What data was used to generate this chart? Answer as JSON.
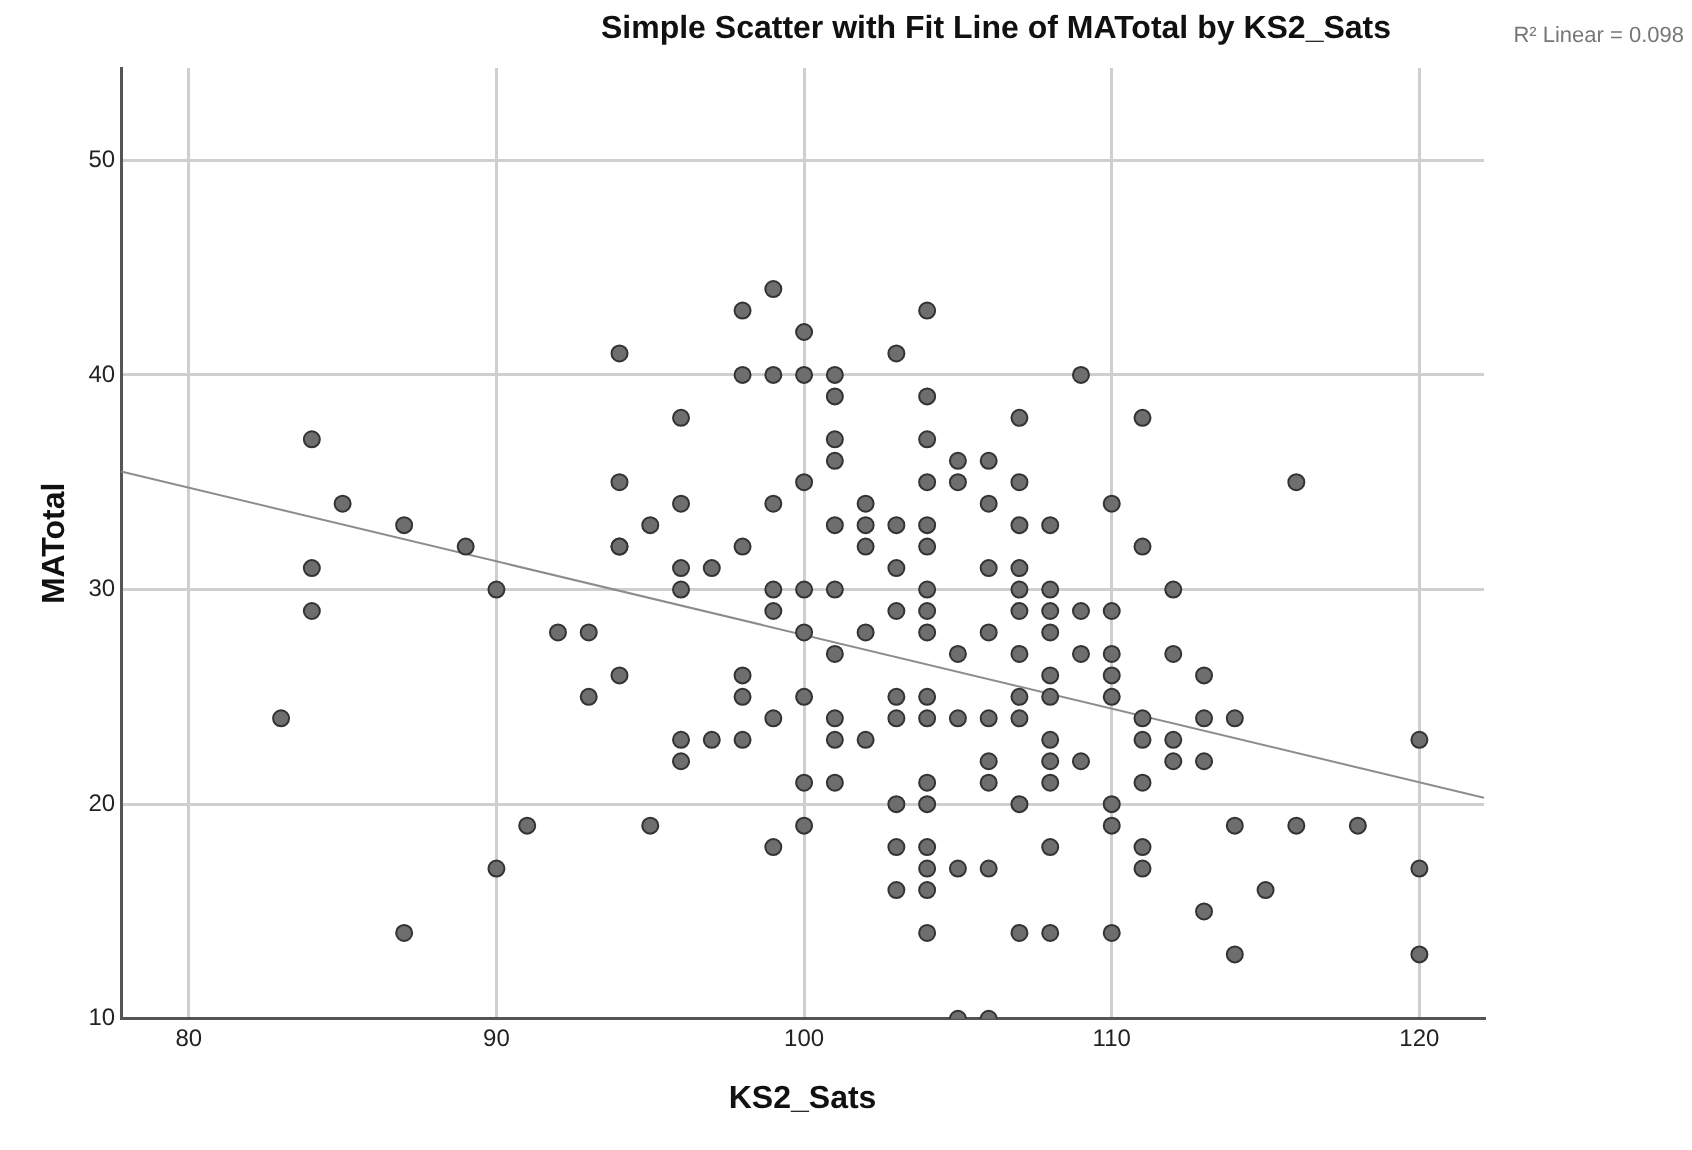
{
  "chart_data": {
    "type": "scatter",
    "title": "Simple Scatter with Fit Line of MATotal by KS2_Sats",
    "xlabel": "KS2_Sats",
    "ylabel": "MATotal",
    "annotations": [
      "R² Linear = 0.098"
    ],
    "xlim": [
      77.8,
      122.1
    ],
    "ylim": [
      10,
      54.3
    ],
    "xticks": [
      80,
      90,
      100,
      110,
      120
    ],
    "yticks": [
      10,
      20,
      30,
      40,
      50
    ],
    "grid": true,
    "legend": false,
    "marker": "circle",
    "series": [
      {
        "type": "scatter",
        "color": "#6e6e6e",
        "x": [
          83,
          84,
          84,
          84,
          85,
          87,
          87,
          89,
          90,
          90,
          91,
          92,
          93,
          93,
          94,
          94,
          94,
          94,
          94,
          95,
          95,
          96,
          96,
          96,
          96,
          96,
          96,
          97,
          97,
          98,
          98,
          98,
          98,
          98,
          98,
          99,
          99,
          99,
          99,
          99,
          99,
          99,
          100,
          100,
          100,
          100,
          100,
          100,
          100,
          100,
          101,
          101,
          101,
          101,
          101,
          101,
          101,
          101,
          101,
          101,
          102,
          102,
          102,
          102,
          102,
          103,
          103,
          103,
          103,
          103,
          103,
          103,
          103,
          103,
          104,
          104,
          104,
          104,
          104,
          104,
          104,
          104,
          104,
          104,
          104,
          104,
          104,
          104,
          104,
          104,
          104,
          105,
          105,
          105,
          105,
          105,
          105,
          106,
          106,
          106,
          106,
          106,
          106,
          106,
          106,
          106,
          107,
          107,
          107,
          107,
          107,
          107,
          107,
          107,
          107,
          107,
          107,
          108,
          108,
          108,
          108,
          108,
          108,
          108,
          108,
          108,
          108,
          108,
          109,
          109,
          109,
          109,
          110,
          110,
          110,
          110,
          110,
          110,
          110,
          110,
          111,
          111,
          111,
          111,
          111,
          111,
          111,
          112,
          112,
          112,
          112,
          113,
          113,
          113,
          113,
          114,
          114,
          114,
          115,
          116,
          116,
          118,
          120,
          120,
          120
        ],
        "values": [
          24,
          37,
          31,
          29,
          34,
          33,
          14,
          32,
          30,
          17,
          19,
          28,
          28,
          25,
          41,
          35,
          32,
          32,
          26,
          33,
          19,
          38,
          34,
          31,
          30,
          23,
          22,
          31,
          23,
          43,
          40,
          32,
          26,
          25,
          23,
          44,
          40,
          34,
          30,
          29,
          24,
          18,
          42,
          40,
          35,
          30,
          28,
          25,
          21,
          19,
          40,
          39,
          37,
          36,
          33,
          30,
          27,
          24,
          23,
          21,
          34,
          33,
          32,
          28,
          23,
          41,
          33,
          31,
          29,
          25,
          24,
          20,
          18,
          16,
          43,
          39,
          37,
          35,
          33,
          32,
          30,
          29,
          28,
          25,
          24,
          21,
          20,
          18,
          17,
          16,
          14,
          36,
          35,
          27,
          24,
          17,
          10,
          36,
          34,
          31,
          28,
          24,
          22,
          21,
          17,
          10,
          38,
          35,
          33,
          31,
          30,
          29,
          27,
          25,
          24,
          20,
          14,
          33,
          30,
          29,
          28,
          26,
          25,
          23,
          22,
          21,
          18,
          14,
          40,
          29,
          27,
          22,
          34,
          29,
          27,
          26,
          25,
          20,
          19,
          14,
          38,
          32,
          24,
          23,
          21,
          18,
          17,
          30,
          27,
          23,
          22,
          26,
          24,
          22,
          15,
          24,
          19,
          13,
          16,
          35,
          19,
          19,
          23,
          17,
          13
        ]
      },
      {
        "type": "line",
        "color": "#8c8c8c",
        "marker": "none",
        "x": [
          77.8,
          122.1
        ],
        "values": [
          35.5,
          20.3
        ]
      }
    ]
  }
}
